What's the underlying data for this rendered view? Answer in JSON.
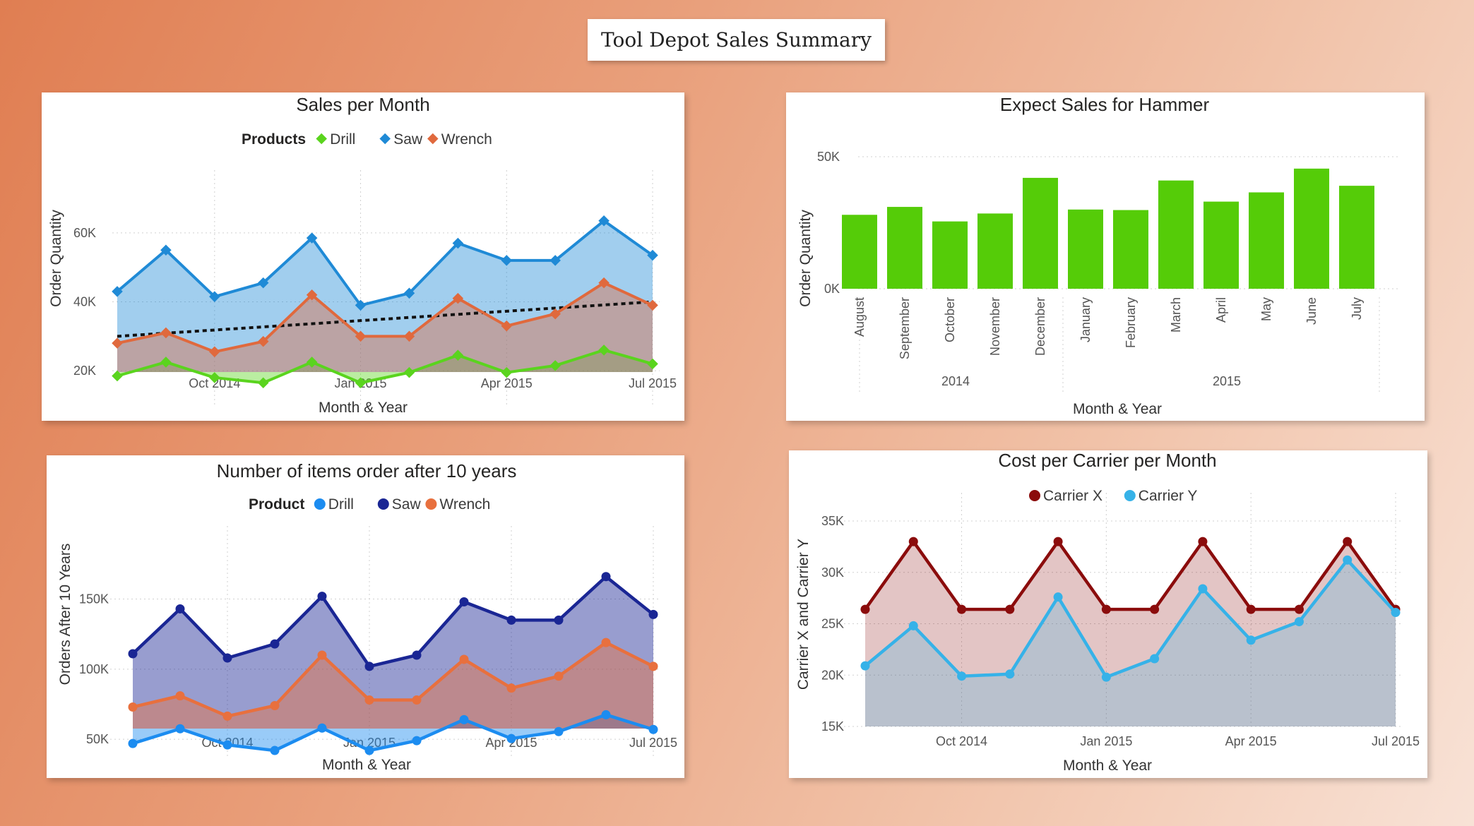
{
  "page_title": "Tool Depot Sales Summary",
  "chart_data": [
    {
      "id": "sales_per_month",
      "type": "area",
      "title": "Sales per Month",
      "legend_title": "Products",
      "xlabel": "Month & Year",
      "ylabel": "Order Quantity",
      "x_ticks": [
        "Oct 2014",
        "Jan 2015",
        "Apr 2015",
        "Jul 2015"
      ],
      "y_ticks": [
        "20K",
        "40K",
        "60K"
      ],
      "ylim": [
        10000,
        70000
      ],
      "legend_placement": "top-center",
      "trend_line": {
        "from": 30000,
        "to": 40000,
        "style": "dotted"
      },
      "months": [
        "Aug 2014",
        "Sep 2014",
        "Oct 2014",
        "Nov 2014",
        "Dec 2014",
        "Jan 2015",
        "Feb 2015",
        "Mar 2015",
        "Apr 2015",
        "May 2015",
        "Jun 2015",
        "Jul 2015"
      ],
      "series": [
        {
          "name": "Drill",
          "color": "#5ad41e",
          "values": [
            18500,
            22500,
            18000,
            16500,
            22500,
            16500,
            19500,
            24500,
            19500,
            21500,
            26000,
            22000
          ]
        },
        {
          "name": "Saw",
          "color": "#1f8ad6",
          "values": [
            43000,
            55000,
            41500,
            45500,
            58500,
            39000,
            42500,
            57000,
            52000,
            52000,
            63500,
            53500
          ]
        },
        {
          "name": "Wrench",
          "color": "#e0693d",
          "values": [
            28000,
            31000,
            25500,
            28500,
            42000,
            30000,
            30000,
            41000,
            33000,
            36500,
            45500,
            39000
          ]
        }
      ]
    },
    {
      "id": "expect_sales_hammer",
      "type": "bar",
      "title": "Expect Sales for Hammer",
      "xlabel": "Month & Year",
      "ylabel": "Order Quantity",
      "y_ticks": [
        "0K",
        "50K"
      ],
      "ylim": [
        0,
        50000
      ],
      "categories": [
        "August",
        "September",
        "October",
        "November",
        "December",
        "January",
        "February",
        "March",
        "April",
        "May",
        "June",
        "July"
      ],
      "year_groups": [
        {
          "label": "2014",
          "count": 5
        },
        {
          "label": "2015",
          "count": 7
        }
      ],
      "color": "#55cc08",
      "values": [
        28000,
        31000,
        25500,
        28500,
        42000,
        30000,
        29800,
        41000,
        33000,
        36500,
        45500,
        39000
      ]
    },
    {
      "id": "items_after_10_years",
      "type": "area",
      "title": "Number of items order after 10 years",
      "legend_title": "Product",
      "xlabel": "Month & Year",
      "ylabel": "Orders After 10 Years",
      "x_ticks": [
        "Oct 2014",
        "Jan 2015",
        "Apr 2015",
        "Jul 2015"
      ],
      "y_ticks": [
        "50K",
        "100K",
        "150K"
      ],
      "ylim": [
        38000,
        182000
      ],
      "legend_placement": "top-center",
      "months": [
        "Aug 2014",
        "Sep 2014",
        "Oct 2014",
        "Nov 2014",
        "Dec 2014",
        "Jan 2015",
        "Feb 2015",
        "Mar 2015",
        "Apr 2015",
        "May 2015",
        "Jun 2015",
        "Jul 2015"
      ],
      "series": [
        {
          "name": "Drill",
          "color": "#1c8cf0",
          "values": [
            47000,
            57500,
            46000,
            42000,
            58000,
            42000,
            49000,
            64000,
            50500,
            55500,
            67500,
            57000
          ]
        },
        {
          "name": "Saw",
          "color": "#1a2694",
          "values": [
            111000,
            143000,
            108000,
            118000,
            152000,
            102000,
            110000,
            148000,
            135000,
            135000,
            166000,
            139000
          ]
        },
        {
          "name": "Wrench",
          "color": "#e8703e",
          "values": [
            73000,
            81000,
            66500,
            74000,
            110000,
            78000,
            78000,
            107000,
            86500,
            95000,
            119000,
            102000
          ]
        }
      ]
    },
    {
      "id": "cost_per_carrier",
      "type": "area",
      "title": "Cost per Carrier per Month",
      "xlabel": "Month & Year",
      "ylabel": "Carrier X and Carrier Y",
      "x_ticks": [
        "Oct 2014",
        "Jan 2015",
        "Apr 2015",
        "Jul 2015"
      ],
      "y_ticks": [
        "15K",
        "20K",
        "25K",
        "30K",
        "35K"
      ],
      "ylim": [
        15000,
        35000
      ],
      "legend_placement": "top-center",
      "months": [
        "Aug 2014",
        "Sep 2014",
        "Oct 2014",
        "Nov 2014",
        "Dec 2014",
        "Jan 2015",
        "Feb 2015",
        "Mar 2015",
        "Apr 2015",
        "May 2015",
        "Jun 2015",
        "Jul 2015"
      ],
      "series": [
        {
          "name": "Carrier X",
          "color": "#8b0c0c",
          "values": [
            26400,
            33000,
            26400,
            26400,
            33000,
            26400,
            26400,
            33000,
            26400,
            26400,
            33000,
            26400
          ]
        },
        {
          "name": "Carrier Y",
          "color": "#36b2e8",
          "values": [
            20900,
            24800,
            19900,
            20100,
            27600,
            19800,
            21600,
            28400,
            23400,
            25200,
            31200,
            26100
          ]
        }
      ]
    }
  ]
}
